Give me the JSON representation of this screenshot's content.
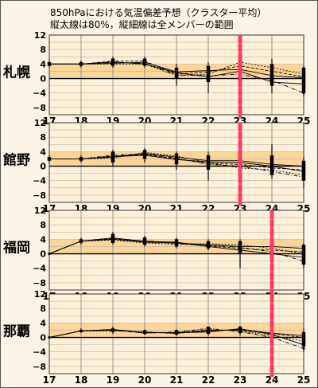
{
  "title_line1": "850hPaにおける気温偏差予想（クラスター平均）",
  "title_line2": "縦太線は80%，縦細線は全メンバーの範囲",
  "chart_data": {
    "type": "line",
    "x_tick_labels": [
      "17",
      "18",
      "19",
      "20",
      "21",
      "22",
      "23",
      "24",
      "25"
    ],
    "y_tick_labels": [
      "12",
      "8",
      "4",
      "0",
      "−4",
      "−8"
    ],
    "ylim": [
      -10,
      12
    ],
    "xlim": [
      17,
      25
    ],
    "normal_band": [
      0,
      4
    ],
    "colors": {
      "band": "#fcd598",
      "panel": "#fdf0d8",
      "member": "#000000",
      "marker": "#ff3a6a"
    },
    "panels": [
      {
        "station": "札幌",
        "marker_day": 23,
        "x": [
          17,
          18,
          19,
          20,
          21,
          22,
          23,
          24,
          25
        ],
        "clusters": [
          [
            4,
            4,
            4.2,
            4.5,
            1.8,
            2.2,
            2.5,
            0.8,
            0.2
          ],
          [
            4,
            4,
            4.8,
            4.8,
            1.2,
            1.8,
            3.5,
            2,
            0.5
          ],
          [
            4,
            4,
            4,
            4,
            0.8,
            1.2,
            4.5,
            3,
            1.2
          ],
          [
            4,
            4,
            4.6,
            4,
            1.6,
            0.5,
            2,
            -1,
            -1.5
          ],
          [
            4,
            4,
            4.4,
            4.2,
            1,
            0.8,
            1.2,
            -0.5,
            -4
          ]
        ],
        "range80": [
          [
            3.5,
            4.5
          ],
          [
            3.5,
            4.5
          ],
          [
            3.5,
            5.5
          ],
          [
            3.5,
            5.5
          ],
          [
            0,
            3
          ],
          [
            -1,
            3.5
          ],
          [
            -1,
            6
          ],
          [
            -2,
            4
          ],
          [
            -4,
            3
          ]
        ],
        "range_all": [
          [
            3,
            5
          ],
          [
            3,
            5
          ],
          [
            3,
            6
          ],
          [
            3,
            6
          ],
          [
            -2,
            4
          ],
          [
            -4,
            4.5
          ],
          [
            -3,
            6.5
          ],
          [
            -4,
            5.5
          ],
          [
            -5,
            3.5
          ]
        ]
      },
      {
        "station": "館野",
        "marker_day": 23,
        "x": [
          17,
          18,
          19,
          20,
          21,
          22,
          23,
          24,
          25
        ],
        "clusters": [
          [
            2,
            2,
            2.5,
            3.5,
            2.5,
            1.5,
            1.5,
            0.5,
            0
          ],
          [
            2,
            2,
            2.8,
            3.2,
            2,
            0.8,
            0.5,
            -0.5,
            -1
          ],
          [
            2,
            2,
            2.2,
            3.8,
            2.8,
            1,
            -0.5,
            -1,
            -2.5
          ],
          [
            2,
            2,
            2.6,
            3,
            1.8,
            1.2,
            1,
            0,
            -1.5
          ],
          [
            2,
            2,
            3,
            3.4,
            2.2,
            0.5,
            0,
            -1.5,
            -3
          ]
        ],
        "range80": [
          [
            1.5,
            2.5
          ],
          [
            1.5,
            2.5
          ],
          [
            1,
            4
          ],
          [
            2,
            4.5
          ],
          [
            0.5,
            3.5
          ],
          [
            -1,
            3
          ],
          [
            -3,
            4
          ],
          [
            -2.5,
            3
          ],
          [
            -4,
            1.5
          ]
        ],
        "range_all": [
          [
            1,
            3
          ],
          [
            1,
            3
          ],
          [
            0,
            4.5
          ],
          [
            1,
            5
          ],
          [
            -1,
            4
          ],
          [
            -4,
            4
          ],
          [
            -4,
            5
          ],
          [
            -3.5,
            6
          ],
          [
            -6,
            2.5
          ]
        ]
      },
      {
        "station": "福岡",
        "marker_day": 24,
        "x": [
          17,
          18,
          19,
          20,
          21,
          22,
          23,
          24,
          25
        ],
        "clusters": [
          [
            0,
            3.5,
            4,
            3.2,
            3,
            2.5,
            2,
            2,
            1.5
          ],
          [
            0,
            3.5,
            4.2,
            3.5,
            2.8,
            2.2,
            1.5,
            1,
            0.5
          ],
          [
            0,
            3.5,
            3.8,
            3,
            2.6,
            2.8,
            2.5,
            1.5,
            0
          ],
          [
            0,
            3.5,
            4.4,
            3.4,
            3.2,
            2,
            1,
            0,
            -1
          ],
          [
            0,
            3.5,
            4,
            3.6,
            3,
            2.4,
            1.8,
            0.5,
            -2
          ]
        ],
        "range80": [
          [
            0,
            0
          ],
          [
            3,
            4
          ],
          [
            3,
            5.5
          ],
          [
            2.5,
            4.5
          ],
          [
            2,
            4
          ],
          [
            1.5,
            3.5
          ],
          [
            0,
            3.5
          ],
          [
            -1,
            2.5
          ],
          [
            -3,
            2.5
          ]
        ],
        "range_all": [
          [
            0,
            0
          ],
          [
            2.5,
            4.5
          ],
          [
            2.5,
            6
          ],
          [
            2,
            5
          ],
          [
            1.5,
            4.5
          ],
          [
            1,
            4
          ],
          [
            -4,
            4
          ],
          [
            -2,
            3
          ],
          [
            -4,
            3
          ]
        ]
      },
      {
        "station": "那覇",
        "marker_day": 24,
        "x": [
          17,
          18,
          19,
          20,
          21,
          22,
          23,
          24,
          25
        ],
        "clusters": [
          [
            0,
            1.8,
            2,
            1.4,
            1.2,
            1.8,
            2.2,
            1.2,
            0.5
          ],
          [
            0,
            1.8,
            2.2,
            1.2,
            1.4,
            2,
            2,
            1,
            0
          ],
          [
            0,
            1.8,
            1.8,
            1.6,
            1,
            2.2,
            1.8,
            0.5,
            -1
          ],
          [
            0,
            1.8,
            2.2,
            1.4,
            1.3,
            1.5,
            2.4,
            0.8,
            -2
          ],
          [
            0,
            1.8,
            2,
            1.2,
            1.5,
            2.5,
            1.6,
            0,
            -3
          ]
        ],
        "range80": [
          [
            0,
            0
          ],
          [
            1.5,
            2
          ],
          [
            1.5,
            2.5
          ],
          [
            1,
            2
          ],
          [
            0.8,
            2
          ],
          [
            1,
            3
          ],
          [
            1.2,
            3
          ],
          [
            -0.5,
            2
          ],
          [
            -2.5,
            1.5
          ]
        ],
        "range_all": [
          [
            0,
            0
          ],
          [
            1.2,
            2.5
          ],
          [
            1,
            3
          ],
          [
            0.8,
            2.2
          ],
          [
            0.5,
            2.2
          ],
          [
            0.5,
            3
          ],
          [
            0.5,
            3.2
          ],
          [
            -1,
            2.5
          ],
          [
            -4,
            2.5
          ]
        ]
      }
    ]
  }
}
